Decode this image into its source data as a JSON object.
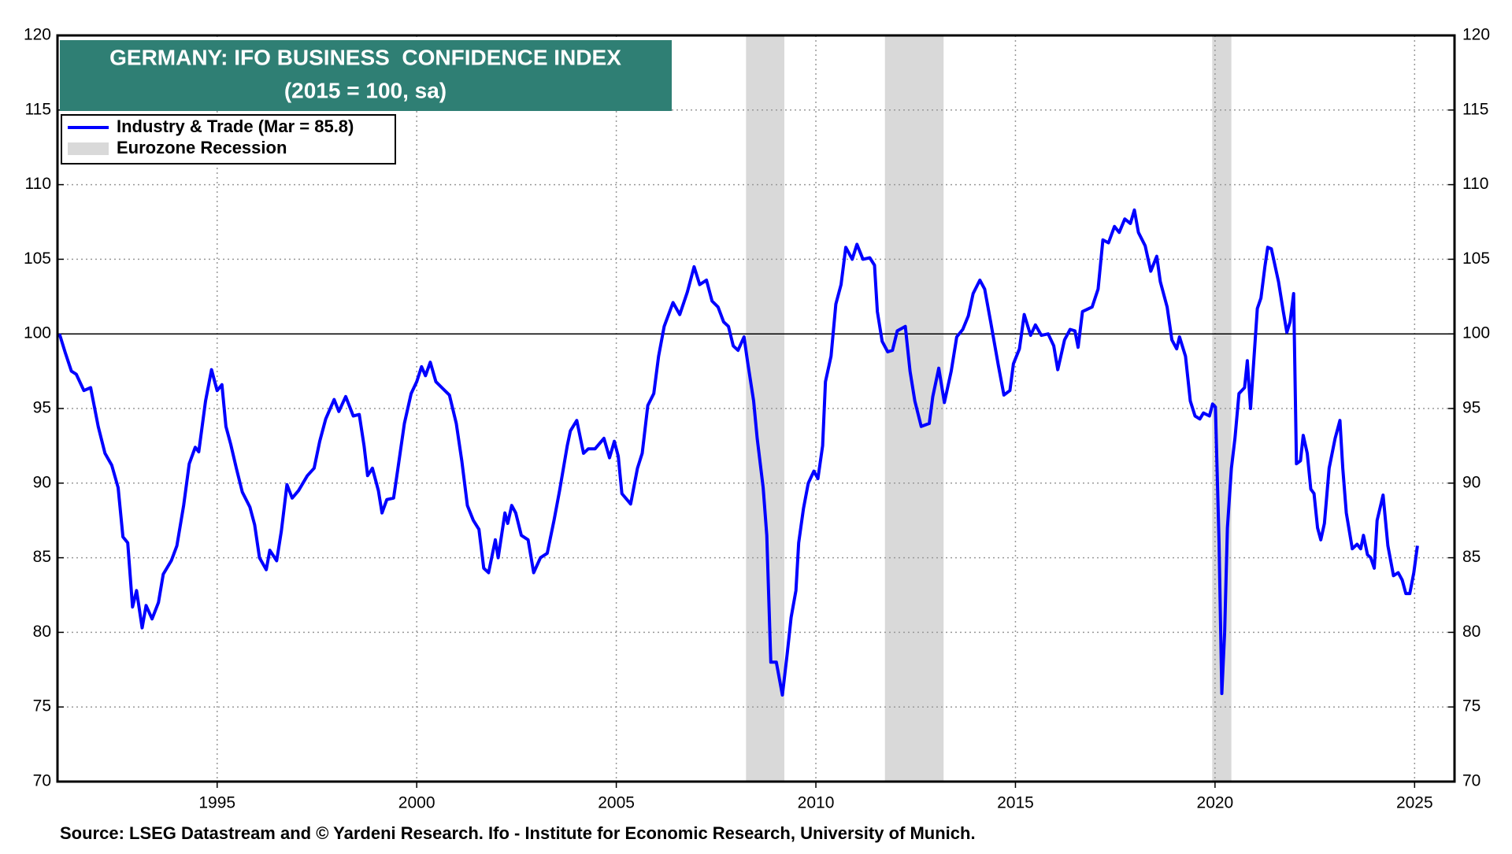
{
  "chart_data": {
    "type": "line",
    "title": "GERMANY: IFO BUSINESS  CONFIDENCE INDEX",
    "subtitle": "(2015 = 100, sa)",
    "source": "Source: LSEG Datastream and © Yardeni Research. Ifo - Institute for Economic Research, University of Munich.",
    "xlim": [
      1991,
      2026
    ],
    "xticks": [
      1995,
      2000,
      2005,
      2010,
      2015,
      2020,
      2025
    ],
    "ylim": [
      70,
      120
    ],
    "yticks": [
      70,
      75,
      80,
      85,
      90,
      95,
      100,
      105,
      110,
      115,
      120
    ],
    "y2lim": [
      70,
      120
    ],
    "y2ticks": [
      70,
      75,
      80,
      85,
      90,
      95,
      100,
      105,
      110,
      115,
      120
    ],
    "grid": true,
    "reference_line": 100,
    "legend": "top-left",
    "recession_label": "Eurozone Recession",
    "recession_color": "#d9d9d9",
    "recessions": [
      [
        2008.25,
        2009.21
      ],
      [
        2011.73,
        2013.2
      ],
      [
        2019.93,
        2020.41
      ]
    ],
    "x": [
      1991.05,
      1991.2,
      1991.35,
      1991.47,
      1991.66,
      1991.83,
      1992.02,
      1992.19,
      1992.36,
      1992.52,
      1992.64,
      1992.76,
      1992.88,
      1992.98,
      1993.12,
      1993.22,
      1993.37,
      1993.53,
      1993.65,
      1993.85,
      1993.99,
      1994.16,
      1994.3,
      1994.45,
      1994.54,
      1994.71,
      1994.86,
      1995.0,
      1995.12,
      1995.22,
      1995.34,
      1995.48,
      1995.63,
      1995.82,
      1995.94,
      1996.06,
      1996.23,
      1996.32,
      1996.49,
      1996.61,
      1996.75,
      1996.88,
      1997.04,
      1997.26,
      1997.43,
      1997.57,
      1997.72,
      1997.93,
      1998.05,
      1998.22,
      1998.41,
      1998.56,
      1998.68,
      1998.77,
      1998.89,
      1999.04,
      1999.13,
      1999.25,
      1999.42,
      1999.52,
      1999.69,
      1999.86,
      2000.0,
      2000.12,
      2000.22,
      2000.34,
      2000.48,
      2000.63,
      2000.82,
      2000.99,
      2001.13,
      2001.27,
      2001.42,
      2001.56,
      2001.68,
      2001.8,
      2001.97,
      2002.04,
      2002.21,
      2002.28,
      2002.38,
      2002.48,
      2002.62,
      2002.79,
      2002.93,
      2003.1,
      2003.27,
      2003.44,
      2003.58,
      2003.77,
      2003.85,
      2004.01,
      2004.18,
      2004.3,
      2004.47,
      2004.69,
      2004.83,
      2004.95,
      2005.05,
      2005.14,
      2005.36,
      2005.53,
      2005.65,
      2005.79,
      2005.94,
      2006.06,
      2006.2,
      2006.42,
      2006.59,
      2006.78,
      2006.95,
      2007.09,
      2007.26,
      2007.4,
      2007.55,
      2007.69,
      2007.81,
      2007.93,
      2008.05,
      2008.2,
      2008.29,
      2008.44,
      2008.53,
      2008.68,
      2008.77,
      2008.87,
      2009.01,
      2009.16,
      2009.28,
      2009.38,
      2009.5,
      2009.57,
      2009.69,
      2009.81,
      2009.95,
      2010.05,
      2010.17,
      2010.24,
      2010.38,
      2010.5,
      2010.63,
      2010.75,
      2010.91,
      2011.03,
      2011.18,
      2011.35,
      2011.47,
      2011.54,
      2011.66,
      2011.8,
      2011.92,
      2012.04,
      2012.24,
      2012.36,
      2012.48,
      2012.64,
      2012.84,
      2012.93,
      2013.08,
      2013.22,
      2013.39,
      2013.53,
      2013.68,
      2013.82,
      2013.94,
      2014.11,
      2014.23,
      2014.38,
      2014.57,
      2014.71,
      2014.86,
      2014.95,
      2015.1,
      2015.22,
      2015.38,
      2015.5,
      2015.65,
      2015.82,
      2015.96,
      2016.06,
      2016.23,
      2016.37,
      2016.49,
      2016.57,
      2016.68,
      2016.92,
      2017.07,
      2017.19,
      2017.33,
      2017.48,
      2017.6,
      2017.74,
      2017.88,
      2017.98,
      2018.08,
      2018.25,
      2018.39,
      2018.54,
      2018.63,
      2018.8,
      2018.92,
      2019.04,
      2019.11,
      2019.26,
      2019.38,
      2019.5,
      2019.62,
      2019.71,
      2019.86,
      2019.94,
      2020.01,
      2020.1,
      2020.17,
      2020.24,
      2020.31,
      2020.41,
      2020.5,
      2020.6,
      2020.74,
      2020.81,
      2020.89,
      2021.06,
      2021.15,
      2021.25,
      2021.32,
      2021.41,
      2021.59,
      2021.71,
      2021.8,
      2021.88,
      2021.97,
      2022.04,
      2022.14,
      2022.21,
      2022.31,
      2022.4,
      2022.48,
      2022.57,
      2022.65,
      2022.74,
      2022.86,
      2023.01,
      2023.13,
      2023.2,
      2023.29,
      2023.44,
      2023.56,
      2023.65,
      2023.72,
      2023.82,
      2023.9,
      2023.99,
      2024.06,
      2024.21,
      2024.33,
      2024.47,
      2024.59,
      2024.69,
      2024.78,
      2024.88,
      2024.98,
      2025.07
    ],
    "series": [
      {
        "name": "Industry & Trade (Mar = 85.8)",
        "color": "#0000ff",
        "values": [
          100,
          98.7,
          97.5,
          97.3,
          96.2,
          96.4,
          93.8,
          92,
          91.2,
          89.7,
          86.4,
          86,
          81.7,
          82.8,
          80.3,
          81.8,
          80.9,
          82,
          83.9,
          84.8,
          85.8,
          88.5,
          91.3,
          92.4,
          92.1,
          95.5,
          97.6,
          96.2,
          96.6,
          93.8,
          92.6,
          91,
          89.4,
          88.4,
          87.2,
          85,
          84.2,
          85.5,
          84.8,
          86.8,
          89.9,
          89,
          89.5,
          90.5,
          91,
          92.8,
          94.3,
          95.6,
          94.8,
          95.8,
          94.5,
          94.6,
          92.5,
          90.5,
          91,
          89.5,
          88,
          88.9,
          89,
          90.8,
          94,
          96,
          96.8,
          97.8,
          97.2,
          98.1,
          96.8,
          96.4,
          95.9,
          94,
          91.5,
          88.5,
          87.5,
          86.9,
          84.3,
          84,
          86.2,
          85,
          88,
          87.3,
          88.5,
          88,
          86.5,
          86.2,
          84,
          85,
          85.3,
          87.5,
          89.5,
          92.5,
          93.5,
          94.2,
          92,
          92.3,
          92.3,
          93,
          91.7,
          92.8,
          91.8,
          89.3,
          88.6,
          91,
          92,
          95.2,
          96,
          98.5,
          100.5,
          102.1,
          101.3,
          102.8,
          104.5,
          103.3,
          103.6,
          102.2,
          101.8,
          100.8,
          100.5,
          99.2,
          98.9,
          99.8,
          98.1,
          95.5,
          93,
          89.7,
          86.5,
          78,
          78,
          75.8,
          78.5,
          81,
          82.8,
          86,
          88.3,
          90,
          90.8,
          90.3,
          92.5,
          96.8,
          98.5,
          102,
          103.3,
          105.8,
          105,
          106,
          105,
          105.1,
          104.6,
          101.5,
          99.5,
          98.8,
          98.9,
          100.2,
          100.5,
          97.5,
          95.5,
          93.8,
          94,
          95.8,
          97.7,
          95.4,
          97.5,
          99.8,
          100.3,
          101.2,
          102.7,
          103.6,
          103,
          100.8,
          97.9,
          95.9,
          96.2,
          98,
          99,
          101.3,
          99.9,
          100.6,
          99.9,
          100,
          99.2,
          97.6,
          99.6,
          100.3,
          100.2,
          99.1,
          101.5,
          101.8,
          103,
          106.3,
          106.1,
          107.2,
          106.8,
          107.7,
          107.4,
          108.3,
          106.8,
          105.9,
          104.2,
          105.2,
          103.5,
          101.8,
          99.6,
          99,
          99.8,
          98.5,
          95.5,
          94.5,
          94.3,
          94.7,
          94.5,
          95.3,
          95.1,
          86,
          75.9,
          80,
          87,
          91,
          93,
          96,
          96.4,
          98.2,
          95,
          101.7,
          102.4,
          104.5,
          105.8,
          105.7,
          103.5,
          101.5,
          100.1,
          100.8,
          102.7,
          91.3,
          91.5,
          93.2,
          92,
          89.6,
          89.3,
          87,
          86.2,
          87.3,
          91,
          93,
          94.2,
          91,
          88,
          85.6,
          85.9,
          85.6,
          86.5,
          85.2,
          85,
          84.3,
          87.5,
          89.2,
          85.8,
          83.8,
          84,
          83.5,
          82.6,
          82.6,
          84,
          85.8
        ]
      }
    ]
  }
}
